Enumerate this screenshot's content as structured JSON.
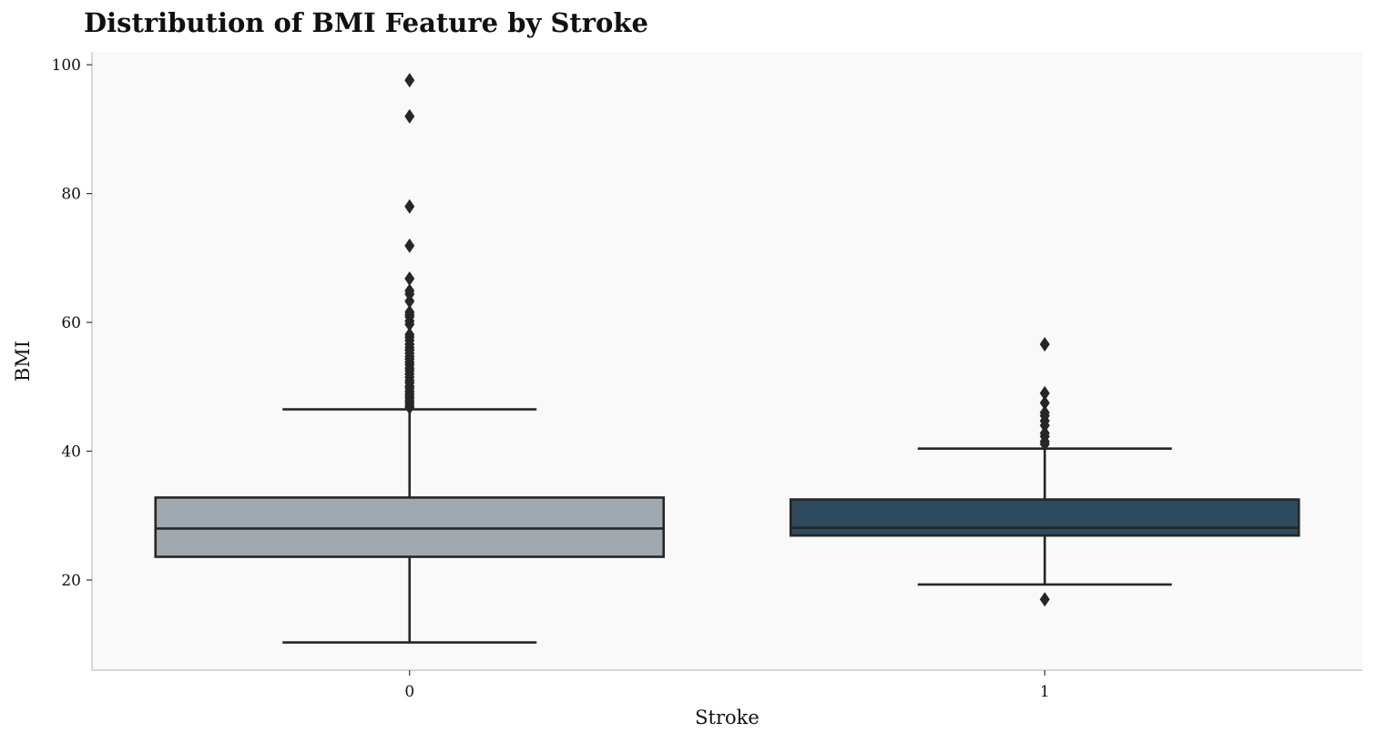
{
  "chart_data": {
    "type": "box",
    "title": "Distribution of BMI Feature by Stroke",
    "xlabel": "Stroke",
    "ylabel": "BMI",
    "categories": [
      "0",
      "1"
    ],
    "ylim": [
      6,
      102
    ],
    "yticks": [
      20,
      40,
      60,
      80,
      100
    ],
    "grid": false,
    "background_color": "#f9f9f9",
    "boxes": [
      {
        "category": "0",
        "color": "#a1a9b0",
        "whisker_low": 10.3,
        "q1": 23.6,
        "median": 28.0,
        "q3": 32.8,
        "whisker_high": 46.5,
        "outliers": [
          97.6,
          92.0,
          78.0,
          71.9,
          66.8,
          64.9,
          64.4,
          63.3,
          61.6,
          61.2,
          60.9,
          60.2,
          59.7,
          58.1,
          57.7,
          57.2,
          56.6,
          56.1,
          55.7,
          55.2,
          54.7,
          54.3,
          53.8,
          53.4,
          52.9,
          52.5,
          52.0,
          51.5,
          51.0,
          50.6,
          50.1,
          49.8,
          49.3,
          48.9,
          48.5,
          48.2,
          47.8,
          47.5,
          47.1,
          46.8
        ]
      },
      {
        "category": "1",
        "color": "#2e4a5e",
        "whisker_low": 19.3,
        "q1": 26.9,
        "median": 28.1,
        "q3": 32.5,
        "whisker_high": 40.4,
        "outliers": [
          56.6,
          49.0,
          47.5,
          46.0,
          45.5,
          44.7,
          44.0,
          42.8,
          42.3,
          41.5,
          41.1,
          17.0
        ]
      }
    ]
  }
}
